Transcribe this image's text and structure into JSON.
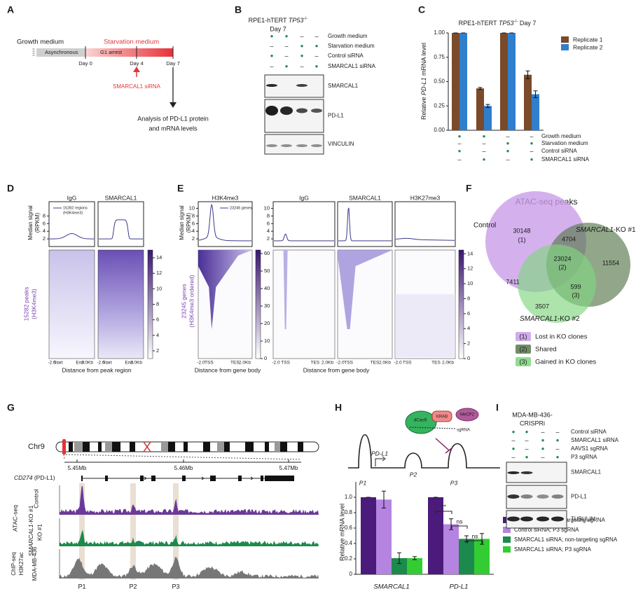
{
  "A": {
    "letter": "A",
    "growth": "Growth medium",
    "starvation": "Starvation medium",
    "async": "Asynchronous",
    "g1": "G1 arrest",
    "days": [
      "Day 0",
      "Day 4",
      "Day 7"
    ],
    "sirna": "SMARCAL1 siRNA",
    "analysis": [
      "Analysis of PD-L1 protein",
      "and mRNA levels"
    ]
  },
  "B": {
    "letter": "B",
    "title": [
      "RPE1-hTERT ",
      "TP53",
      "-/-"
    ],
    "subtitle": "Day 7",
    "conditions": [
      "Growth medium",
      "Starvation medium",
      "Control siRNA",
      "SMARCAL1 siRNA"
    ],
    "matrix": [
      [
        "●",
        "●",
        "–",
        "–"
      ],
      [
        "–",
        "–",
        "●",
        "●"
      ],
      [
        "●",
        "–",
        "●",
        "–"
      ],
      [
        "–",
        "●",
        "–",
        "●"
      ]
    ],
    "blots": [
      "SMARCAL1",
      "PD-L1",
      "VINCULIN"
    ]
  },
  "C": {
    "letter": "C"
  },
  "chart_data": [
    {
      "type": "bar",
      "title": [
        "RPE1-hTERT ",
        "TP53",
        "-/-",
        " Day 7"
      ],
      "ylabel": [
        "Relative ",
        "PD-L1",
        " mRNA level"
      ],
      "ylim": [
        0,
        1
      ],
      "yticks": [
        {
          "value": 0,
          "label": "0.00"
        },
        {
          "value": 0.25,
          "label": "0.25"
        },
        {
          "value": 0.5,
          "label": "0.50"
        },
        {
          "value": 0.75,
          "label": "0.75"
        },
        {
          "value": 1,
          "label": "1.00"
        }
      ],
      "series": [
        {
          "name": "Replicate 1",
          "color": "#7a4a2b",
          "values": [
            1,
            0.43,
            1,
            0.57
          ],
          "errors": [
            0,
            0.01,
            0,
            0.04
          ]
        },
        {
          "name": "Replicate 2",
          "color": "#2f7fcd",
          "values": [
            1,
            0.25,
            1,
            0.37
          ],
          "errors": [
            0,
            0.015,
            0,
            0.035
          ]
        }
      ],
      "conditions": [
        "Growth medium",
        "Starvation medium",
        "Control siRNA",
        "SMARCAL1 siRNA"
      ],
      "matrix": [
        [
          "●",
          "●",
          "–",
          "–"
        ],
        [
          "–",
          "–",
          "●",
          "●"
        ],
        [
          "●",
          "–",
          "●",
          "–"
        ],
        [
          "–",
          "●",
          "–",
          "●"
        ]
      ]
    },
    {
      "type": "bar",
      "categories": [
        "SMARCAL1",
        "PD-L1"
      ],
      "ylabel": "Relative mRNA level",
      "ylim": [
        0,
        1.2
      ],
      "yticks": [
        0,
        0.2,
        0.4,
        0.6,
        0.8,
        {
          "value": 1,
          "label": "1.0"
        }
      ],
      "series": [
        {
          "name": "Control siRNA; non-targeting sgRNA",
          "color": "#4b1b7b",
          "values": [
            1,
            1
          ],
          "errors": [
            0,
            0
          ]
        },
        {
          "name": "Control siRNA; P3 sgRNA",
          "color": "#b583e0",
          "values": [
            0.97,
            0.65
          ],
          "errors": [
            0.11,
            0.07
          ]
        },
        {
          "name": "SMARCAL1 siRNA; non-targeting sgRNA",
          "color": "#1c8a4c",
          "values": [
            0.21,
            0.46
          ],
          "errors": [
            0.07,
            0.04
          ]
        },
        {
          "name": "SMARCAL1 siRNA; P3 sgRNA",
          "color": "#33cc33",
          "values": [
            0.21,
            0.46
          ],
          "errors": [
            0.02,
            0.07
          ]
        }
      ],
      "annotations": [
        "**",
        "ns",
        "ns"
      ]
    }
  ],
  "D": {
    "letter": "D",
    "panels": [
      "IgG",
      "SMARCAL1"
    ],
    "ylabel": [
      "Median signal",
      "(RPKM)"
    ],
    "legend": [
      "15282 regions",
      "(H3K4me3)"
    ],
    "yticks": [
      2,
      4,
      6,
      8
    ],
    "cbar": [
      2,
      4,
      6,
      8,
      10,
      12,
      14
    ],
    "rowlabel": [
      "15282 peaks",
      "(H3K4me3)"
    ],
    "xticks": [
      "-2.0",
      "Start",
      "End",
      "2.0Kb"
    ],
    "xlabel": "Distance from peak region"
  },
  "E": {
    "letter": "E",
    "panels": [
      "H3K4me3",
      "IgG",
      "SMARCAL1",
      "H3K27me3"
    ],
    "ylabel": [
      "Median signal",
      "(RPKM)"
    ],
    "legend": "23245 genes",
    "yticks": [
      2,
      4,
      6,
      8,
      10
    ],
    "cbar1": [
      0,
      10,
      20,
      30,
      40,
      50,
      60
    ],
    "cbar2": [
      0,
      2,
      4,
      6,
      8,
      10,
      12,
      14
    ],
    "rowlabel": [
      "23245 genes",
      "(H3K4me3 ordered)"
    ],
    "xticks": [
      "-2.0",
      "TSS",
      "TES",
      "2.0Kb"
    ],
    "xlabel": "Distance from gene body"
  },
  "F": {
    "letter": "F",
    "title": "ATAC-seq peaks",
    "control": "Control",
    "ko1": [
      "SMARCAL1",
      "-KO #1"
    ],
    "ko2": [
      "SMARCAL1",
      "-KO #2"
    ],
    "counts": [
      30148,
      4704,
      11554,
      23024,
      7411,
      599,
      3507
    ],
    "tags": [
      "(1)",
      "(2)",
      "(3)"
    ],
    "legend": [
      "Lost in KO clones",
      "Shared",
      "Gained in KO clones"
    ]
  },
  "G": {
    "letter": "G",
    "chrom": "Chr9",
    "coords": [
      "5.45Mb",
      "5.46Mb",
      "5.47Mb"
    ],
    "gene": [
      "CD274",
      " (PD-L1)"
    ],
    "assay1": "ATAC-seq",
    "control": "Control",
    "ko": [
      "SMARCAL1-",
      "KO #1"
    ],
    "assay2": [
      "ChIP-seq",
      "H3K27ac"
    ],
    "cell": "MDA-MB-436",
    "peaks": [
      "P1",
      "P2",
      "P3"
    ]
  },
  "H": {
    "letter": "H",
    "diagram": {
      "dcas9": "dCas9",
      "krab": "KRAB",
      "mecp2": "MeCP2",
      "sgrna": "sgRNA",
      "gene": "PD-L1",
      "promoters": [
        "P1",
        "P2",
        "P3"
      ]
    }
  },
  "I": {
    "letter": "I",
    "title": [
      "MDA-MB-436-",
      "CRISPRi"
    ],
    "conditions": [
      "Control siRNA",
      "SMARCAL1 siRNA",
      "AAVS1 sgRNA",
      "P3 sgRNA"
    ],
    "matrix": [
      [
        "●",
        "●",
        "–",
        "–"
      ],
      [
        "–",
        "–",
        "●",
        "●"
      ],
      [
        "●",
        "–",
        "●",
        "–"
      ],
      [
        "–",
        "●",
        "–",
        "●"
      ]
    ],
    "blots": [
      "SMARCAL1",
      "PD-L1",
      "TUBULIN"
    ]
  }
}
